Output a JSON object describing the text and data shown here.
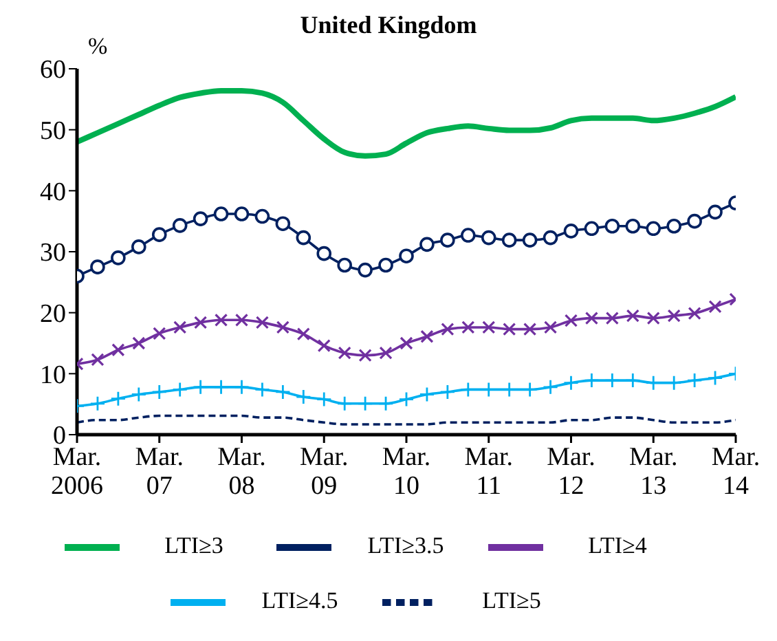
{
  "chart_data": {
    "type": "line",
    "title": "United Kingdom",
    "ylabel": "%",
    "categories": [
      "Mar.\n2006",
      null,
      null,
      null,
      "Mar.\n07",
      null,
      null,
      null,
      "Mar.\n08",
      null,
      null,
      null,
      "Mar.\n09",
      null,
      null,
      null,
      "Mar.\n10",
      null,
      null,
      null,
      "Mar.\n11",
      null,
      null,
      null,
      "Mar.\n12",
      null,
      null,
      null,
      "Mar.\n13",
      null,
      null,
      null,
      "Mar.\n14"
    ],
    "series": [
      {
        "name": "LTI≥3",
        "color": "#00b050",
        "marker": "none",
        "line_style": "solid",
        "values": [
          48,
          49.5,
          51,
          52.5,
          54,
          55.3,
          56,
          56.4,
          56.4,
          56,
          54.5,
          51.5,
          48.5,
          46.3,
          45.7,
          46,
          47.8,
          49.5,
          50.2,
          50.6,
          50.2,
          49.9,
          49.9,
          50.3,
          51.5,
          51.9,
          51.9,
          51.9,
          51.5,
          51.9,
          52.7,
          53.8,
          55.4
        ]
      },
      {
        "name": "LTI≥3.5",
        "color": "#002060",
        "marker": "circle",
        "line_style": "solid",
        "values": [
          26,
          27.5,
          29,
          30.8,
          32.8,
          34.3,
          35.4,
          36.2,
          36.2,
          35.8,
          34.6,
          32.3,
          29.7,
          27.8,
          27,
          27.8,
          29.3,
          31.2,
          31.9,
          32.7,
          32.3,
          31.9,
          31.9,
          32.3,
          33.4,
          33.8,
          34.2,
          34.2,
          33.8,
          34.2,
          35,
          36.5,
          38
        ]
      },
      {
        "name": "LTI≥4",
        "color": "#7030a0",
        "marker": "cross",
        "line_style": "solid",
        "values": [
          11.6,
          12.3,
          13.9,
          15,
          16.6,
          17.6,
          18.4,
          18.8,
          18.8,
          18.4,
          17.6,
          16.5,
          14.6,
          13.4,
          13,
          13.4,
          15,
          16.1,
          17.3,
          17.6,
          17.6,
          17.3,
          17.3,
          17.6,
          18.7,
          19.1,
          19.1,
          19.5,
          19.1,
          19.5,
          19.9,
          21,
          22.2
        ]
      },
      {
        "name": "LTI≥4.5",
        "color": "#00b0f0",
        "marker": "plus",
        "line_style": "solid",
        "values": [
          4.7,
          5.1,
          5.9,
          6.6,
          7,
          7.4,
          7.8,
          7.8,
          7.8,
          7.4,
          7,
          6.2,
          5.8,
          5.1,
          5.1,
          5.1,
          5.8,
          6.6,
          7,
          7.4,
          7.4,
          7.4,
          7.4,
          7.8,
          8.5,
          8.9,
          8.9,
          8.9,
          8.5,
          8.5,
          8.9,
          9.3,
          10
        ]
      },
      {
        "name": "LTI≥5",
        "color": "#002060",
        "marker": "none",
        "line_style": "dashed",
        "values": [
          2,
          2.4,
          2.4,
          2.8,
          3.1,
          3.1,
          3.1,
          3.1,
          3.1,
          2.8,
          2.8,
          2.4,
          2,
          1.7,
          1.7,
          1.7,
          1.7,
          1.7,
          2,
          2,
          2,
          2,
          2,
          2,
          2.4,
          2.4,
          2.8,
          2.8,
          2.4,
          2,
          2,
          2,
          2.4
        ]
      }
    ],
    "ylim": [
      0,
      60
    ],
    "yticks": [
      0,
      10,
      20,
      30,
      40,
      50,
      60
    ],
    "grid": false,
    "legend": "bottom"
  }
}
